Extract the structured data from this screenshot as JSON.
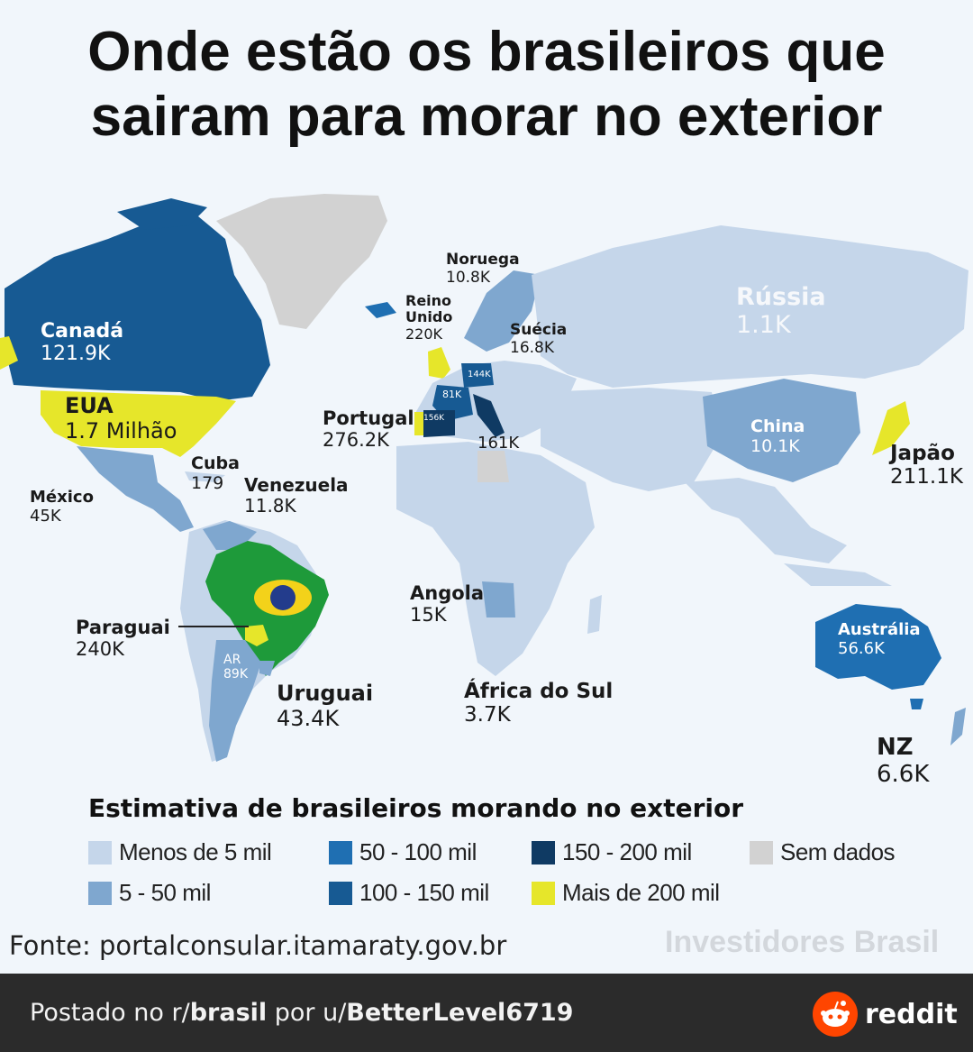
{
  "title": [
    "Onde estão os brasileiros que",
    "sairam para morar no exterior"
  ],
  "colors": {
    "less_5k": "#c5d6ea",
    "k5_50": "#7fa7cf",
    "k50_100": "#1f6fb2",
    "k100_150": "#175a93",
    "k150_200": "#0f3a63",
    "over_200k": "#e6e62a",
    "no_data": "#d2d2d2",
    "brazil_green": "#1e9a3a"
  },
  "countries": [
    {
      "name": "Canadá",
      "value": "121.9K"
    },
    {
      "name": "EUA",
      "value": "1.7 Milhão"
    },
    {
      "name": "México",
      "value": "45K"
    },
    {
      "name": "Cuba",
      "value": "179"
    },
    {
      "name": "Venezuela",
      "value": "11.8K"
    },
    {
      "name": "Paraguai",
      "value": "240K"
    },
    {
      "name": "AR",
      "value": "89K"
    },
    {
      "name": "Uruguai",
      "value": "43.4K"
    },
    {
      "name": "Noruega",
      "value": "10.8K"
    },
    {
      "name": "Reino Unido",
      "value": "220K"
    },
    {
      "name": "Suécia",
      "value": "16.8K"
    },
    {
      "name": "Portugal",
      "value": "276.2K"
    },
    {
      "name": "Rússia",
      "value": "1.1K"
    },
    {
      "name": "China",
      "value": "10.1K"
    },
    {
      "name": "Japão",
      "value": "211.1K"
    },
    {
      "name": "Angola",
      "value": "15K"
    },
    {
      "name": "África do Sul",
      "value": "3.7K"
    },
    {
      "name": "Austrália",
      "value": "56.6K"
    },
    {
      "name": "NZ",
      "value": "6.6K"
    }
  ],
  "small_values": {
    "germany": "144K",
    "france": "81K",
    "spain": "156K",
    "italy": "161K"
  },
  "legend": {
    "title": "Estimativa de brasileiros morando no exterior",
    "items": [
      {
        "label": "Menos de 5 mil",
        "color": "#c5d6ea"
      },
      {
        "label": "5 - 50 mil",
        "color": "#7fa7cf"
      },
      {
        "label": "50 - 100 mil",
        "color": "#1f6fb2"
      },
      {
        "label": "100 - 150 mil",
        "color": "#175a93"
      },
      {
        "label": "150 - 200 mil",
        "color": "#0f3a63"
      },
      {
        "label": "Mais de 200 mil",
        "color": "#e6e62a"
      },
      {
        "label": "Sem dados",
        "color": "#d2d2d2"
      }
    ]
  },
  "source": "Fonte: portalconsular.itamaraty.gov.br",
  "brand": "Investidores Brasil",
  "footer": {
    "prefix": "Postado no r/",
    "subreddit": "brasil",
    "middle": " por u/",
    "user": "BetterLevel6719",
    "reddit": "reddit"
  }
}
